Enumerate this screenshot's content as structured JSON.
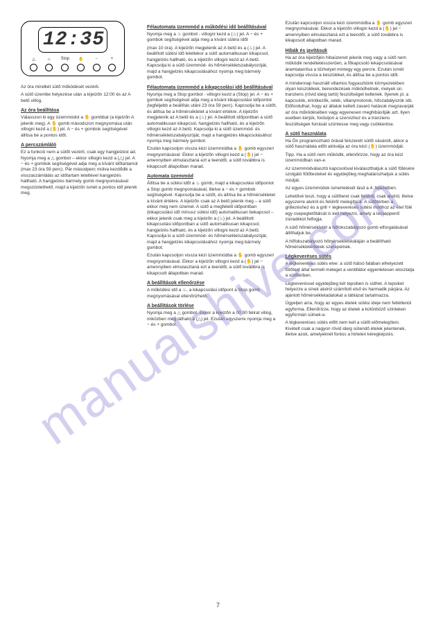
{
  "watermark": "manualshive.com",
  "clock": {
    "time": "12:35",
    "buttons": [
      "△",
      "♨",
      "Stop",
      "✋",
      "−",
      "+"
    ]
  },
  "col1": {
    "intro1": "Az óra mindkét sütő működését vezérli.",
    "intro2": "A sütő üzembe helyezése után a kijelzőn 12:00 és az A betű villog.",
    "h1": "Az óra beállítása",
    "p1": "Válasszon ki egy üzemmódot a ✋ gombbal (a kijelzőn A jelenik meg). A ✋ gomb másodszori megnyomása után villogni kezd a (✋) jel. A − és + gombok segítségével állítsa be a pontos időt.",
    "h2": "A percszámláló",
    "p2": "Ez a funkció nem a sütőt vezérli, csak egy hangjelzést ad. Nyomja meg a △ gombot – ekkor villogni kezd a (△) jel. A − és + gombok segítségével adja meg a kívánt időtartamot (max 23 óra 59 perc). Pár másodperc múlva kezdődik a visszaszámlálás az időtartam leteltével hangjelzés hallható. A hangjelzés bármely gomb megnyomásával megszüntethető, majd a kijelzőn ismét a pontos idő jelenik meg."
  },
  "col2": {
    "h1": "Félautomata üzemmód a működési idő beállításával",
    "p1a": "Nyomja meg a ♨ gombot - villogni kezd a (♨) jel. A − és + gombok segítségével adja meg a kívánt sütési időt",
    "p1b": "(max 10 óra). A kijelzőn megjelenik az A betű és a (♨) jel. A beállított sütési idő leteltekor a sütő automatikusan kikapcsol, hangjelzés hallható, és a kijelzőn villogni kezd az A betű. Kapcsolja ki a sütő üzemmód- és hőmérsékletszabályozóját, majd a hangjelzés kikapcsolásához nyomja meg bármely gombot.",
    "h2": "Félautomata üzemmód a kikapcsolási idő beállításával",
    "p2": "Nyomja meg a Stop gombot - villogni kezd a (Stop) jel. A − és + gombok segítségével adja meg a kívánt kikapcsolási időpontot (legfeljebb a beállítás utáni 23 óra 59 perc). Kapcsolja be a sütőt, és állítsa be a hőmérsékletet a kívánt értékre. A kijelzőn megjelenik az A betű és a (♨) jel. A beállított időpontban a sütő automatikusan kikapcsol, hangjelzés hallható, és a kijelzőn villogni kezd az A betű. Kapcsolja ki a sütő üzemmód- és hőmérsékletszabályozóját, majd a hangjelzés kikapcsolásához nyomja meg bármely gombot.",
    "p3": "Ezután kapcsoljon vissza kézi üzemmódba a ✋ gomb egyszeri megnyomásával. Ekkor a kijelzőn villogni kezd a (✋) jel − amennyiben elmulasztaná ezt a teendőt, a sütő továbbra is kikapcsolt állapotban marad.",
    "h3": "Automata üzemmód",
    "p4a": "Állítsa be a sütési időt a ♨ gomb, majd a kikapcsolási időpontot a Stop gomb megnyomásával, illetve a − és + gombok segítségével. Kapcsolja be a sütőt, és állítsa be a hőmérsékletet a kívánt értékre. A kijelzőn csak az A betű jelenik meg – a sütő ekkor még nem üzemel. A sütő a megfelelő időpontban (kikapcsolási idő mínusz sütési idő) automatikusan bekapcsol – ekkor jelenik csak meg a kijelzőn a (♨) jel. A beállított kikapcsolási időpontban a sütő automatikusan kikapcsol, hangjelzés hallható, és a kijelzőn villogni kezd az A betű. Kapcsolja ki a sütő üzemmód- és hőmérsékletszabályozóját, majd a hangjelzés kikapcsolásához nyomja meg bármely gombot.",
    "p4b": "Ezután kapcsoljon vissza kézi üzemmódba a ✋ gomb egyszeri megnyomásával. Ekkor a kijelzőn villogni kezd a (✋) jel − amennyiben elmulasztaná ezt a teendőt, a sütő továbbra is kikapcsolt állapotban marad.",
    "h4": "A beállítások ellenőrzése",
    "p5": "A működési idő a ♨, a kikapcsolási időpont a Stop gomb megnyomásával ellenőrizhető.",
    "h5": "A beállítások törlése",
    "p6": "Nyomja meg a △ gombot. Ekkor a kijelzőn a 00 00 felirat villog, miközben még látható a (△) jel. Ezután egyszerre nyomja meg a − és + gombot."
  },
  "col3": {
    "p1": "Ezután kapcsoljon vissza kézi üzemmódba a ✋ gomb egyszeri megnyomásával. Ekkor a kijelzőn villogni kezd a (✋) jel − amennyiben elmulasztaná ezt a teendőt, a sütő továbbra is kikapcsolt állapotban marad.",
    "h1": "Hibák és javításuk",
    "p2": "Ha az óra kijelzőjén hibaüzenet jelenik meg vagy a sütő nem működik rendeltetésszerűen, a főkapcsoló lekapcsolásával áramtalanítsa a tűzhelyet mintegy egy percre. Ezután ismét kapcsolja vissza a készüléket, és állítsa be a pontos időt.",
    "p3": "A mindennap használt villamos fogyasztóink környezetében olyan készülékek, berendezések működhetnek, melyek ún. tranziens (rövid ideig tartó) feszültséget keltenek. Ilyenek pl. a kapcsolók, érintkezők, relék, villanymotorok, hőszabályozók stb. Előfordulhat, hogy az általuk keltett zavaró hatások megzavarják az óra működésében vagy egyenesen meghibásítják azt. Ilyen esetben kérjük, forduljon a szervizhez és a tranziens feszültségek forrását szüntesse meg vagy csökkentse.",
    "h2": "A sütő használata",
    "p4": "Ha Ön programozható órával felszerelt sütőt vásárolt, akkor a sütő használata előtt aktiválja az óra kézi (✋) üzemmódját.",
    "p5a": "Tipp. Ha a sütő nem működik, ellenőrizze, hogy az óra kézi üzemmódban van-e.",
    "p5b": "Az üzemmódválasztó kapcsolóval kiválaszthatjuk a sütő fűtésére szolgáló fűtőtesteket és egyidejűleg meghatározhatjuk a sütés módját.",
    "p5c": "Az egyes üzemmódok ismertetését lásd a 4. fejezetben.",
    "p5d": "Lehetővé teszi, hogy a sütőteret csak felülről, csak alulról, illetve egyszerre alulról és felülről melegítsük. A sütőtérben a grillezéshez és a grill + légkeveréses sütési módhoz az étel fölé egy csepegtetőtálcát is kell helyezni, amely a lecseppenő zsiradékot felfogja.",
    "p5e": "A sütő hőmérsékletét a hőfokszabályozó gomb elforgatásával állíthatjuk be.",
    "p5f": "A hőfokszabályozó hőmérsékletskáláján a beállítható hőmérsékletértékek szerepelnek.",
    "h3": "Légkeveréses sütés",
    "p6a": "A légkeveréses sütés elve: a sütő hátsó falában elhelyezett fűtőtest által termelt meleget a ventillátor egyenletesen eloszlatja a sütőtérben.",
    "p6b": "Légkeveréssel egyidejűleg két tepsiben is süthet. A tepsiket helyezze a sínek alulról számított első és harmadik párjára. Az ajánlott hőmérsékletadatokat a táblázat tartalmazza.",
    "p6c": "Ügyeljen arra, hogy az egyes ételek sütési ideje nem feltétlenül egyforma. Ellenőrizze, hogy az ételek a különböző szinteken egyformán sülnek-e.",
    "p6d": "A légkeveréses sütés előtt nem kell a sütőt előmelegíteni. Kivételt csak a nagyon rövid ideig sütendő ételek jelentenek, illetve azok, amelyeknél fontos a hirtelen kéregképzés."
  },
  "pageNum": "7"
}
